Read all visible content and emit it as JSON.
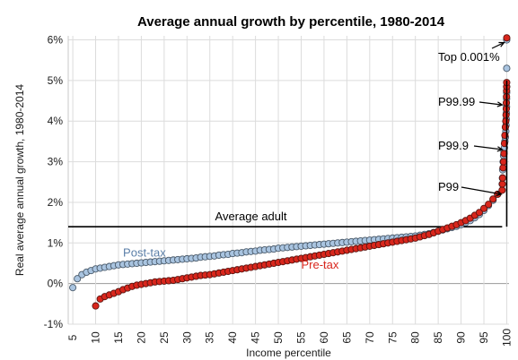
{
  "chart_data": {
    "type": "scatter",
    "title": "Average annual growth by percentile, 1980-2014",
    "xlabel": "Income percentile",
    "ylabel": "Real average annual growth, 1980-2014",
    "xlim": [
      4,
      100.5
    ],
    "ylim": [
      -1,
      6.1
    ],
    "x_ticks": [
      5,
      10,
      15,
      20,
      25,
      30,
      35,
      40,
      45,
      50,
      55,
      60,
      65,
      70,
      75,
      80,
      85,
      90,
      95,
      100
    ],
    "y_ticks": [
      -1,
      0,
      1,
      2,
      3,
      4,
      5,
      6
    ],
    "y_tick_labels": [
      "-1%",
      "0%",
      "1%",
      "2%",
      "3%",
      "4%",
      "5%",
      "6%"
    ],
    "grid": true,
    "reference_line": {
      "label": "Average adult",
      "y": 1.4,
      "x_range": [
        4,
        99
      ]
    },
    "series": [
      {
        "name": "Post-tax",
        "color": "#a9c4e0",
        "label_color": "#5b7fa8",
        "label_anchor": {
          "x": 16,
          "y": 0.75
        },
        "points": [
          [
            5,
            -0.1
          ],
          [
            6,
            0.12
          ],
          [
            7,
            0.22
          ],
          [
            8,
            0.28
          ],
          [
            9,
            0.32
          ],
          [
            10,
            0.36
          ],
          [
            11,
            0.38
          ],
          [
            12,
            0.4
          ],
          [
            13,
            0.42
          ],
          [
            14,
            0.44
          ],
          [
            15,
            0.46
          ],
          [
            16,
            0.47
          ],
          [
            17,
            0.48
          ],
          [
            18,
            0.49
          ],
          [
            19,
            0.5
          ],
          [
            20,
            0.51
          ],
          [
            21,
            0.52
          ],
          [
            22,
            0.53
          ],
          [
            23,
            0.54
          ],
          [
            24,
            0.55
          ],
          [
            25,
            0.56
          ],
          [
            26,
            0.57
          ],
          [
            27,
            0.58
          ],
          [
            28,
            0.59
          ],
          [
            29,
            0.6
          ],
          [
            30,
            0.61
          ],
          [
            31,
            0.62
          ],
          [
            32,
            0.63
          ],
          [
            33,
            0.65
          ],
          [
            34,
            0.66
          ],
          [
            35,
            0.67
          ],
          [
            36,
            0.68
          ],
          [
            37,
            0.7
          ],
          [
            38,
            0.71
          ],
          [
            39,
            0.72
          ],
          [
            40,
            0.74
          ],
          [
            41,
            0.75
          ],
          [
            42,
            0.76
          ],
          [
            43,
            0.78
          ],
          [
            44,
            0.79
          ],
          [
            45,
            0.8
          ],
          [
            46,
            0.82
          ],
          [
            47,
            0.83
          ],
          [
            48,
            0.84
          ],
          [
            49,
            0.85
          ],
          [
            50,
            0.87
          ],
          [
            51,
            0.88
          ],
          [
            52,
            0.89
          ],
          [
            53,
            0.9
          ],
          [
            54,
            0.91
          ],
          [
            55,
            0.92
          ],
          [
            56,
            0.93
          ],
          [
            57,
            0.94
          ],
          [
            58,
            0.95
          ],
          [
            59,
            0.96
          ],
          [
            60,
            0.97
          ],
          [
            61,
            0.98
          ],
          [
            62,
            0.99
          ],
          [
            63,
            1.0
          ],
          [
            64,
            1.01
          ],
          [
            65,
            1.02
          ],
          [
            66,
            1.03
          ],
          [
            67,
            1.04
          ],
          [
            68,
            1.05
          ],
          [
            69,
            1.06
          ],
          [
            70,
            1.07
          ],
          [
            71,
            1.08
          ],
          [
            72,
            1.09
          ],
          [
            73,
            1.1
          ],
          [
            74,
            1.11
          ],
          [
            75,
            1.12
          ],
          [
            76,
            1.13
          ],
          [
            77,
            1.14
          ],
          [
            78,
            1.15
          ],
          [
            79,
            1.16
          ],
          [
            80,
            1.17
          ],
          [
            81,
            1.19
          ],
          [
            82,
            1.21
          ],
          [
            83,
            1.23
          ],
          [
            84,
            1.26
          ],
          [
            85,
            1.29
          ],
          [
            86,
            1.32
          ],
          [
            87,
            1.35
          ],
          [
            88,
            1.38
          ],
          [
            89,
            1.41
          ],
          [
            90,
            1.45
          ],
          [
            91,
            1.5
          ],
          [
            92,
            1.55
          ],
          [
            93,
            1.62
          ],
          [
            94,
            1.7
          ],
          [
            95,
            1.8
          ],
          [
            96,
            1.92
          ],
          [
            97,
            2.05
          ],
          [
            98,
            2.2
          ],
          [
            99,
            2.45
          ],
          [
            99.05,
            2.6
          ],
          [
            99.1,
            2.8
          ],
          [
            99.2,
            3.0
          ],
          [
            99.3,
            3.15
          ],
          [
            99.4,
            3.25
          ],
          [
            99.5,
            3.35
          ],
          [
            99.6,
            3.5
          ],
          [
            99.7,
            3.6
          ],
          [
            99.8,
            3.75
          ],
          [
            99.85,
            3.9
          ],
          [
            99.9,
            4.05
          ],
          [
            99.92,
            4.2
          ],
          [
            99.95,
            4.35
          ],
          [
            99.97,
            4.55
          ],
          [
            99.98,
            4.7
          ],
          [
            99.99,
            4.85
          ],
          [
            99.995,
            5.3
          ],
          [
            99.999,
            6.0
          ]
        ]
      },
      {
        "name": "Pre-tax",
        "color": "#d9261c",
        "label_color": "#d9261c",
        "label_anchor": {
          "x": 55,
          "y": 0.45
        },
        "points": [
          [
            10,
            -0.55
          ],
          [
            11,
            -0.38
          ],
          [
            12,
            -0.32
          ],
          [
            13,
            -0.28
          ],
          [
            14,
            -0.24
          ],
          [
            15,
            -0.2
          ],
          [
            16,
            -0.15
          ],
          [
            17,
            -0.11
          ],
          [
            18,
            -0.07
          ],
          [
            19,
            -0.04
          ],
          [
            20,
            -0.02
          ],
          [
            21,
            0.0
          ],
          [
            22,
            0.02
          ],
          [
            23,
            0.04
          ],
          [
            24,
            0.05
          ],
          [
            25,
            0.06
          ],
          [
            26,
            0.07
          ],
          [
            27,
            0.08
          ],
          [
            28,
            0.1
          ],
          [
            29,
            0.12
          ],
          [
            30,
            0.14
          ],
          [
            31,
            0.16
          ],
          [
            32,
            0.18
          ],
          [
            33,
            0.2
          ],
          [
            34,
            0.21
          ],
          [
            35,
            0.22
          ],
          [
            36,
            0.24
          ],
          [
            37,
            0.26
          ],
          [
            38,
            0.28
          ],
          [
            39,
            0.3
          ],
          [
            40,
            0.32
          ],
          [
            41,
            0.34
          ],
          [
            42,
            0.36
          ],
          [
            43,
            0.38
          ],
          [
            44,
            0.4
          ],
          [
            45,
            0.42
          ],
          [
            46,
            0.44
          ],
          [
            47,
            0.46
          ],
          [
            48,
            0.48
          ],
          [
            49,
            0.5
          ],
          [
            50,
            0.52
          ],
          [
            51,
            0.54
          ],
          [
            52,
            0.56
          ],
          [
            53,
            0.58
          ],
          [
            54,
            0.6
          ],
          [
            55,
            0.62
          ],
          [
            56,
            0.64
          ],
          [
            57,
            0.66
          ],
          [
            58,
            0.68
          ],
          [
            59,
            0.7
          ],
          [
            60,
            0.72
          ],
          [
            61,
            0.74
          ],
          [
            62,
            0.76
          ],
          [
            63,
            0.78
          ],
          [
            64,
            0.8
          ],
          [
            65,
            0.82
          ],
          [
            66,
            0.84
          ],
          [
            67,
            0.86
          ],
          [
            68,
            0.88
          ],
          [
            69,
            0.9
          ],
          [
            70,
            0.92
          ],
          [
            71,
            0.94
          ],
          [
            72,
            0.96
          ],
          [
            73,
            0.98
          ],
          [
            74,
            1.0
          ],
          [
            75,
            1.02
          ],
          [
            76,
            1.04
          ],
          [
            77,
            1.06
          ],
          [
            78,
            1.08
          ],
          [
            79,
            1.1
          ],
          [
            80,
            1.12
          ],
          [
            81,
            1.15
          ],
          [
            82,
            1.18
          ],
          [
            83,
            1.21
          ],
          [
            84,
            1.25
          ],
          [
            85,
            1.29
          ],
          [
            86,
            1.33
          ],
          [
            87,
            1.37
          ],
          [
            88,
            1.41
          ],
          [
            89,
            1.45
          ],
          [
            90,
            1.5
          ],
          [
            91,
            1.55
          ],
          [
            92,
            1.61
          ],
          [
            93,
            1.68
          ],
          [
            94,
            1.75
          ],
          [
            95,
            1.85
          ],
          [
            96,
            1.95
          ],
          [
            97,
            2.08
          ],
          [
            98,
            2.2
          ],
          [
            99,
            2.3
          ],
          [
            99.05,
            2.45
          ],
          [
            99.1,
            2.6
          ],
          [
            99.2,
            2.85
          ],
          [
            99.3,
            3.0
          ],
          [
            99.4,
            3.2
          ],
          [
            99.5,
            3.45
          ],
          [
            99.6,
            3.65
          ],
          [
            99.7,
            3.85
          ],
          [
            99.8,
            4.0
          ],
          [
            99.85,
            4.15
          ],
          [
            99.9,
            4.3
          ],
          [
            99.92,
            4.45
          ],
          [
            99.95,
            4.6
          ],
          [
            99.97,
            4.75
          ],
          [
            99.98,
            4.85
          ],
          [
            99.99,
            4.95
          ],
          [
            99.999,
            6.05
          ]
        ]
      }
    ],
    "annotations": [
      {
        "text": "Top 0.001%",
        "point": [
          99.999,
          6.0
        ]
      },
      {
        "text": "P99.99",
        "point": [
          99.99,
          4.4
        ]
      },
      {
        "text": "P99.9",
        "point": [
          99.9,
          3.3
        ]
      },
      {
        "text": "P99",
        "point": [
          99,
          2.2
        ]
      }
    ]
  }
}
